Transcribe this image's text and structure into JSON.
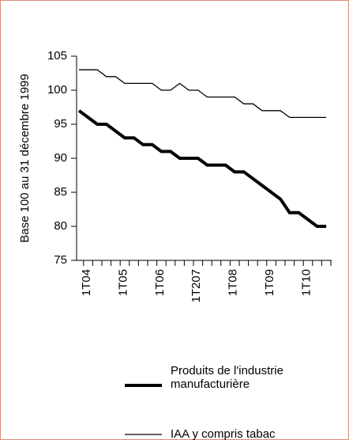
{
  "chart_data": {
    "type": "line",
    "y_label": "Base 100 au 31 décembre 1999",
    "categories": [
      "1T04",
      null,
      null,
      null,
      "1T05",
      null,
      null,
      null,
      "1T06",
      null,
      null,
      null,
      "1T207",
      null,
      null,
      null,
      "1T08",
      null,
      null,
      null,
      "1T09",
      null,
      null,
      null,
      "1T10",
      null,
      null,
      null
    ],
    "series": [
      {
        "name": "Produits de l'industrie manufacturière",
        "color": "#000000",
        "width": 4,
        "values": [
          97,
          96,
          95,
          95,
          94,
          93,
          93,
          92,
          92,
          91,
          91,
          90,
          90,
          90,
          89,
          89,
          89,
          88,
          88,
          87,
          86,
          85,
          84,
          82,
          82,
          81,
          80,
          80
        ]
      },
      {
        "name": "IAA y compris tabac",
        "color": "#000000",
        "width": 1.3,
        "values": [
          103,
          103,
          103,
          102,
          102,
          101,
          101,
          101,
          101,
          100,
          100,
          101,
          100,
          100,
          99,
          99,
          99,
          99,
          98,
          98,
          97,
          97,
          97,
          96,
          96,
          96,
          96,
          96
        ]
      }
    ],
    "ylim": [
      75,
      105
    ],
    "yticks": [
      75,
      80,
      85,
      90,
      95,
      100,
      105
    ]
  }
}
